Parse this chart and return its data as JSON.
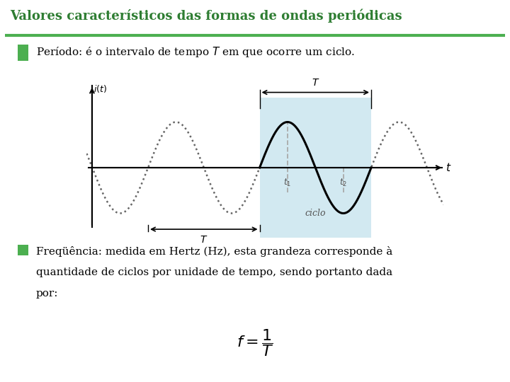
{
  "title": "Valores característicos das formas de ondas periódicas",
  "title_color": "#2e7d32",
  "title_underline_color": "#4caf50",
  "background_color": "#ffffff",
  "bullet_color": "#4caf50",
  "text_color": "#000000",
  "bullet1": "Período: é o intervalo de tempo $T$ em que ocorre um ciclo.",
  "bullet2_line1": "Freqüência: medida em Hertz (Hz), esta grandeza corresponde à",
  "bullet2_line2": "quantidade de ciclos por unidade de tempo, sendo portanto dada",
  "bullet2_line3": "por:",
  "formula": "$f = \\dfrac{1}{T}$",
  "wave_bg_color": "#add8e6",
  "wave_bg_alpha": 0.55,
  "dotted_color": "#666666",
  "solid_color": "#000000",
  "dashed_color": "#aaaaaa",
  "axis_color": "#000000",
  "label_color": "#555555"
}
